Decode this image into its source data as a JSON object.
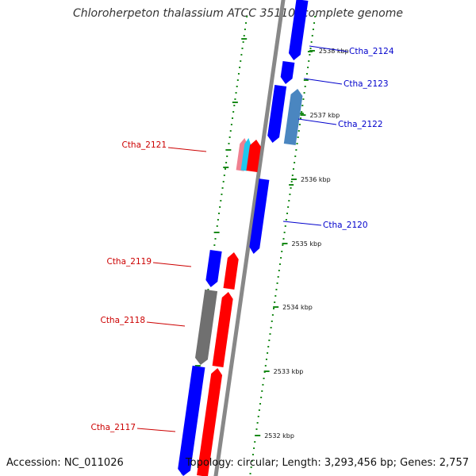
{
  "title": "Chloroherpeton thalassium ATCC 35110, complete genome",
  "footer": {
    "accession": "Accession: NC_011026",
    "summary": "Topology: circular; Length: 3,293,456 bp; Genes: 2,757"
  },
  "colors": {
    "forward": "#ff0000",
    "forward_light": "#f08090",
    "forward_cyan": "#1ec8ee",
    "reverse": "#0000ff",
    "reverse_steel": "#4a86c0",
    "pseudo_gray": "#707070",
    "backbone": "#888888",
    "ticks": "#1a8a1a",
    "label_forward": "#cc0000",
    "label_reverse": "#0000cc"
  },
  "ticks": [
    {
      "label": "2538 kbp"
    },
    {
      "label": "2537 kbp"
    },
    {
      "label": "2536 kbp"
    },
    {
      "label": "2535 kbp"
    },
    {
      "label": "2534 kbp"
    },
    {
      "label": "2533 kbp"
    },
    {
      "label": "2532 kbp"
    }
  ],
  "genes": [
    {
      "name": "Ctha_2124",
      "strand": "reverse"
    },
    {
      "name": "Ctha_2123",
      "strand": "reverse"
    },
    {
      "name": "Ctha_2122",
      "strand": "reverse"
    },
    {
      "name": "Ctha_2121",
      "strand": "forward"
    },
    {
      "name": "Ctha_2120",
      "strand": "reverse"
    },
    {
      "name": "Ctha_2119",
      "strand": "forward"
    },
    {
      "name": "Ctha_2118",
      "strand": "forward"
    },
    {
      "name": "Ctha_2117",
      "strand": "forward"
    }
  ]
}
